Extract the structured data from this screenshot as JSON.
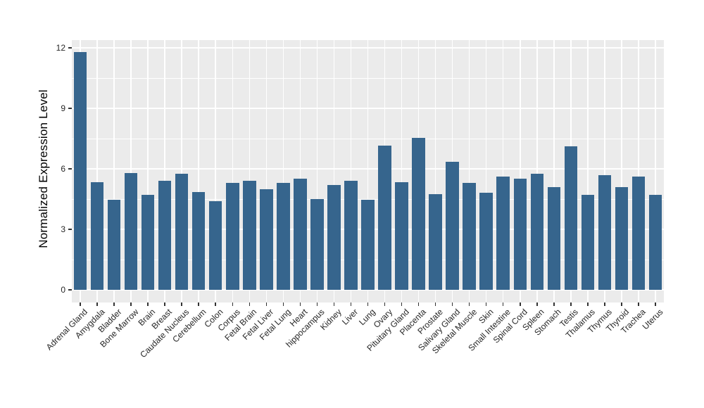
{
  "figure": {
    "background": "#FFFFFF"
  },
  "chart_data": {
    "type": "bar",
    "title": "",
    "xlabel": "",
    "ylabel": "Normalized Expression Level",
    "categories": [
      "Adrenal Gland",
      "Amygdala",
      "Bladder",
      "Bone Marrow",
      "Brain",
      "Breast",
      "Caudate Nucleus",
      "Cerebellum",
      "Colon",
      "Corpus",
      "Fetal Brain",
      "Fetal Liver",
      "Fetal Lung",
      "Heart",
      "hippocampus",
      "Kidney",
      "Liver",
      "Lung",
      "Ovary",
      "Pituitary Gland",
      "Placenta",
      "Prostate",
      "Salivary Gland",
      "Skeletal Muscle",
      "Skin",
      "Small Intestine",
      "Spinal Cord",
      "Spleen",
      "Stomach",
      "Testis",
      "Thalamus",
      "Thymus",
      "Thyroid",
      "Trachea",
      "Uterus"
    ],
    "values": [
      11.8,
      5.35,
      4.45,
      5.8,
      4.7,
      5.4,
      5.75,
      4.85,
      4.4,
      5.3,
      5.4,
      5.0,
      5.3,
      5.5,
      4.5,
      5.2,
      5.4,
      4.45,
      7.15,
      5.35,
      7.55,
      4.75,
      6.35,
      5.3,
      4.8,
      5.6,
      5.5,
      5.75,
      5.1,
      7.1,
      4.7,
      5.7,
      5.1,
      5.6,
      4.7
    ],
    "yticks": [
      0,
      3,
      6,
      9,
      12
    ],
    "ylim": [
      0,
      12.4
    ],
    "x_label_angle_deg": 45,
    "grid": true,
    "legend_position": "none",
    "colors": {
      "bar": "#36658D",
      "panel_background": "#EBEBEB",
      "gridline_major": "#FFFFFF",
      "gridline_minor": "#FFFFFF",
      "tick_mark": "#333333",
      "axis_text": "#262626",
      "axis_title": "#000000"
    }
  }
}
